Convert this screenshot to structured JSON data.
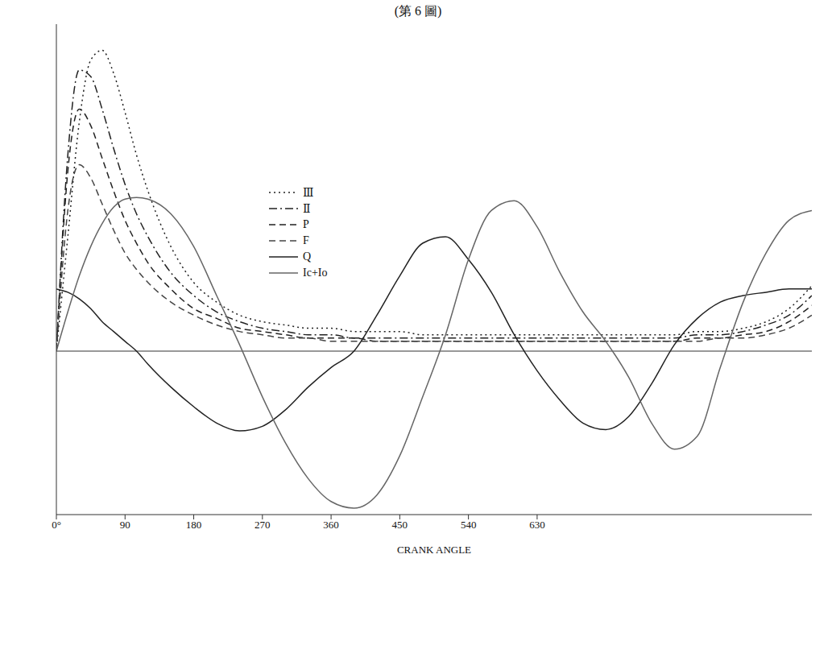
{
  "chart_data": {
    "type": "line",
    "title": "(第 6 圖)",
    "x_label": "CRANK ANGLE",
    "x": [
      0,
      15,
      30,
      45,
      60,
      75,
      90,
      105,
      120,
      150,
      180,
      210,
      240,
      270,
      300,
      330,
      360,
      390,
      420,
      450,
      480,
      510,
      540,
      570,
      600,
      630,
      660,
      690,
      720,
      750,
      780,
      810,
      840,
      870,
      900,
      930,
      960,
      990
    ],
    "xlim": [
      0,
      990
    ],
    "xticks": [
      {
        "value": 0,
        "label": "0°"
      },
      90,
      180,
      270,
      360,
      450,
      540,
      630
    ],
    "ylim": [
      -5,
      10
    ],
    "yticks": [
      -5,
      0,
      5,
      10
    ],
    "tick_labels": "x",
    "grid": false,
    "legend": "top-left",
    "series": [
      {
        "name": "Ⅲ",
        "color": "#222222",
        "line_style": "dotted",
        "values": [
          0,
          3.5,
          7.0,
          8.9,
          9.2,
          8.5,
          7.3,
          6.0,
          4.9,
          3.2,
          2.1,
          1.5,
          1.1,
          0.9,
          0.8,
          0.7,
          0.7,
          0.6,
          0.6,
          0.6,
          0.5,
          0.5,
          0.5,
          0.5,
          0.5,
          0.5,
          0.5,
          0.5,
          0.5,
          0.5,
          0.5,
          0.5,
          0.6,
          0.6,
          0.7,
          0.9,
          1.3,
          2.0
        ]
      },
      {
        "name": "Ⅱ",
        "color": "#222222",
        "line_style": "dashdot",
        "values": [
          0,
          6.0,
          8.6,
          8.4,
          7.4,
          6.2,
          5.1,
          4.2,
          3.5,
          2.4,
          1.7,
          1.2,
          0.9,
          0.7,
          0.6,
          0.5,
          0.5,
          0.4,
          0.4,
          0.4,
          0.4,
          0.4,
          0.4,
          0.4,
          0.4,
          0.4,
          0.4,
          0.4,
          0.4,
          0.4,
          0.4,
          0.4,
          0.5,
          0.5,
          0.6,
          0.8,
          1.1,
          1.7
        ]
      },
      {
        "name": "P",
        "color": "#222222",
        "line_style": "dashed",
        "values": [
          0,
          5.5,
          7.4,
          6.9,
          5.9,
          4.9,
          4.0,
          3.3,
          2.7,
          1.9,
          1.3,
          1.0,
          0.7,
          0.6,
          0.5,
          0.4,
          0.4,
          0.4,
          0.3,
          0.3,
          0.3,
          0.3,
          0.3,
          0.3,
          0.3,
          0.3,
          0.3,
          0.3,
          0.3,
          0.3,
          0.3,
          0.3,
          0.4,
          0.4,
          0.5,
          0.6,
          0.9,
          1.4
        ]
      },
      {
        "name": "F",
        "color": "#444444",
        "line_style": "dashed",
        "values": [
          0,
          4.3,
          5.7,
          5.3,
          4.5,
          3.7,
          3.0,
          2.5,
          2.1,
          1.5,
          1.1,
          0.8,
          0.6,
          0.5,
          0.4,
          0.4,
          0.3,
          0.3,
          0.3,
          0.3,
          0.3,
          0.3,
          0.3,
          0.3,
          0.3,
          0.3,
          0.3,
          0.3,
          0.3,
          0.3,
          0.3,
          0.3,
          0.3,
          0.4,
          0.4,
          0.5,
          0.7,
          1.1
        ]
      },
      {
        "name": "Q",
        "color": "#222222",
        "line_style": "solid",
        "values": [
          1.9,
          1.8,
          1.6,
          1.3,
          0.9,
          0.6,
          0.3,
          0.0,
          -0.4,
          -1.1,
          -1.7,
          -2.2,
          -2.44,
          -2.3,
          -1.8,
          -1.1,
          -0.5,
          0,
          1.1,
          2.3,
          3.3,
          3.5,
          2.8,
          1.8,
          0.5,
          -0.6,
          -1.5,
          -2.2,
          -2.4,
          -2.0,
          -1.0,
          0.2,
          1.0,
          1.5,
          1.7,
          1.8,
          1.9,
          1.9
        ]
      },
      {
        "name": "Ic+Io",
        "color": "#666666",
        "line_style": "solid",
        "values": [
          0,
          1.2,
          2.3,
          3.2,
          3.9,
          4.4,
          4.65,
          4.7,
          4.65,
          4.2,
          3.2,
          1.7,
          0.2,
          -1.4,
          -2.8,
          -3.9,
          -4.6,
          -4.8,
          -4.4,
          -3.2,
          -1.4,
          0.5,
          2.8,
          4.3,
          4.6,
          3.8,
          2.4,
          1.2,
          0.3,
          -0.8,
          -2.2,
          -3.0,
          -2.6,
          -0.5,
          1.5,
          3.0,
          4.0,
          4.3
        ]
      }
    ]
  }
}
